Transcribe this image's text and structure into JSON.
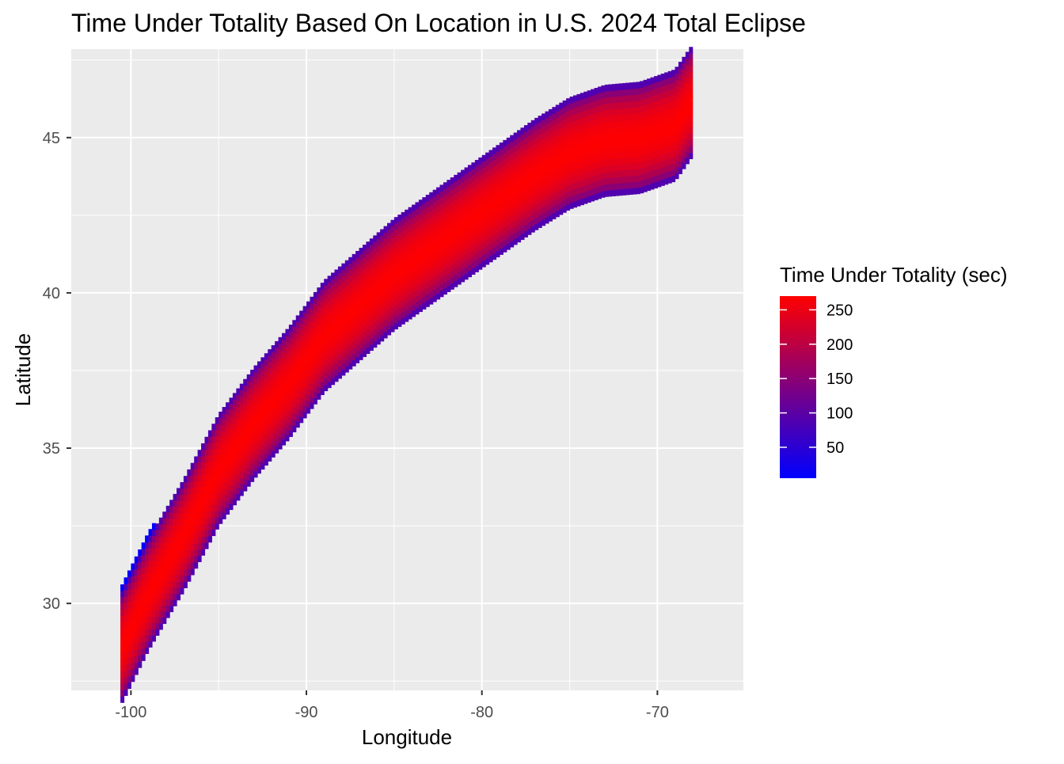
{
  "chart_data": {
    "type": "heatmap",
    "title": "Time Under Totality Based On Location in U.S. 2024 Total Eclipse",
    "xlabel": "Longitude",
    "ylabel": "Latitude",
    "xlim": [
      -103.4,
      -65.1
    ],
    "ylim": [
      27.2,
      47.85
    ],
    "x_ticks": [
      -100,
      -90,
      -80,
      -70
    ],
    "x_tick_labels": [
      "-100",
      "-90",
      "-80",
      "-70"
    ],
    "y_ticks": [
      30,
      35,
      40,
      45
    ],
    "y_tick_labels": [
      "30",
      "35",
      "40",
      "45"
    ],
    "grid": true,
    "legend": {
      "title": "Time Under Totality (sec)",
      "position": "right",
      "min": 5,
      "max": 270,
      "breaks": [
        50,
        100,
        150,
        200,
        250
      ],
      "break_labels": [
        "50",
        "100",
        "150",
        "200",
        "250"
      ],
      "color_low": "#0000FF",
      "color_high": "#FF0000"
    },
    "path": {
      "center_line": [
        {
          "lon": -100.6,
          "lat": 28.5
        },
        {
          "lon": -99,
          "lat": 30.3
        },
        {
          "lon": -97,
          "lat": 32.2
        },
        {
          "lon": -95,
          "lat": 34.3
        },
        {
          "lon": -93,
          "lat": 35.8
        },
        {
          "lon": -91,
          "lat": 37.1
        },
        {
          "lon": -89,
          "lat": 38.6
        },
        {
          "lon": -87,
          "lat": 39.6
        },
        {
          "lon": -85,
          "lat": 40.6
        },
        {
          "lon": -83,
          "lat": 41.4
        },
        {
          "lon": -81,
          "lat": 42.2
        },
        {
          "lon": -79,
          "lat": 43.0
        },
        {
          "lon": -77,
          "lat": 43.8
        },
        {
          "lon": -75,
          "lat": 44.5
        },
        {
          "lon": -73,
          "lat": 44.9
        },
        {
          "lon": -71,
          "lat": 45.0
        },
        {
          "lon": -69,
          "lat": 45.4
        },
        {
          "lon": -68,
          "lat": 46.2
        }
      ],
      "half_width_deg": 1.8,
      "max_seconds": 268
    }
  }
}
